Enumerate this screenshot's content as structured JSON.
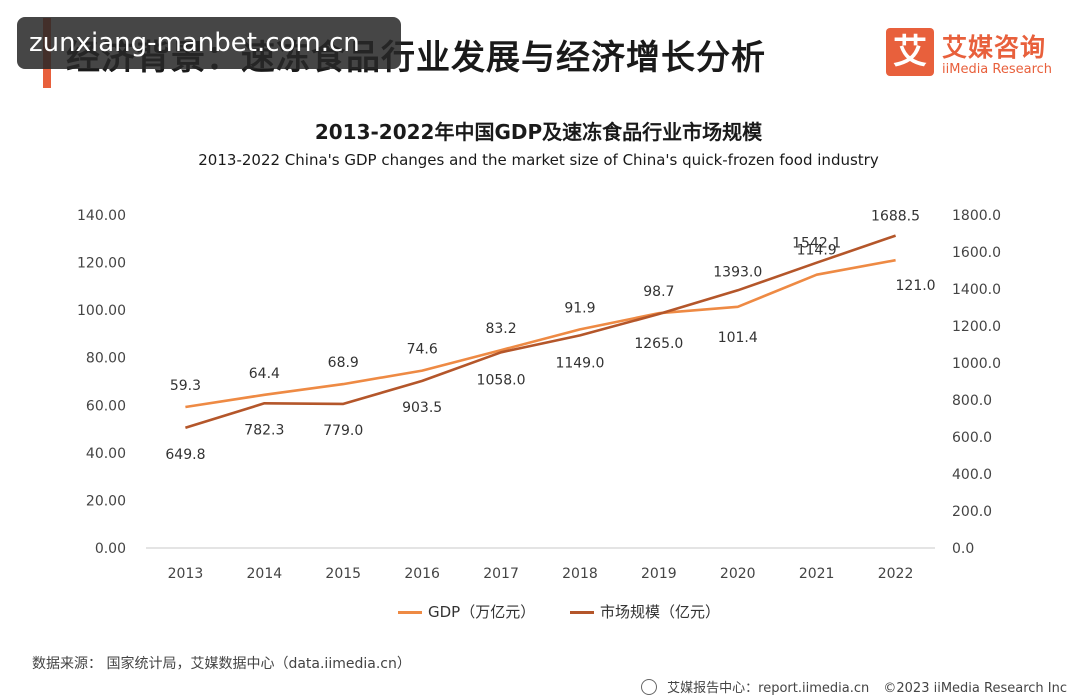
{
  "header": {
    "page_title": "经济背景：速冻食品行业发展与经济增长分析",
    "watermark": "zunxiang-manbet.com.cn",
    "brand_cn": "艾媒咨询",
    "brand_en": "iiMedia Research",
    "brand_logo_char": "艾"
  },
  "colors": {
    "accent": "#e8603c",
    "gdp_line": "#ee8a44",
    "market_line": "#b4562a",
    "axis": "#c8c8c8"
  },
  "chart_data": {
    "type": "line",
    "title": "2013-2022年中国GDP及速冻食品行业市场规模",
    "subtitle": "2013-2022 China's GDP changes and the market size of China's quick-frozen food industry",
    "categories": [
      "2013",
      "2014",
      "2015",
      "2016",
      "2017",
      "2018",
      "2019",
      "2020",
      "2021",
      "2022"
    ],
    "y_left": {
      "min": 0,
      "max": 140,
      "ticks": [
        "0.00",
        "20.00",
        "40.00",
        "60.00",
        "80.00",
        "100.00",
        "120.00",
        "140.00"
      ]
    },
    "y_right": {
      "min": 0,
      "max": 1800,
      "ticks": [
        "0.0",
        "200.0",
        "400.0",
        "600.0",
        "800.0",
        "1000.0",
        "1200.0",
        "1400.0",
        "1600.0",
        "1800.0"
      ]
    },
    "series": [
      {
        "name": "GDP（万亿元）",
        "axis": "left",
        "values": [
          59.3,
          64.4,
          68.9,
          74.6,
          83.2,
          91.9,
          98.7,
          101.4,
          114.9,
          121.0
        ],
        "labels": [
          "59.3",
          "64.4",
          "68.9",
          "74.6",
          "83.2",
          "91.9",
          "98.7",
          "101.4",
          "114.9",
          "121.0"
        ]
      },
      {
        "name": "市场规模（亿元）",
        "axis": "right",
        "values": [
          649.8,
          782.3,
          779.0,
          903.5,
          1058.0,
          1149.0,
          1265.0,
          1393.0,
          1542.1,
          1688.5
        ],
        "labels": [
          "649.8",
          "782.3",
          "779.0",
          "903.5",
          "1058.0",
          "1149.0",
          "1265.0",
          "1393.0",
          "1542.1",
          "1688.5"
        ]
      }
    ],
    "legend_position": "bottom-center",
    "grid": false
  },
  "footer": {
    "source": "数据来源： 国家统计局，艾媒数据中心（data.iimedia.cn）",
    "report_center": "艾媒报告中心：report.iimedia.cn",
    "copyright": "©2023  iiMedia Research  Inc"
  }
}
